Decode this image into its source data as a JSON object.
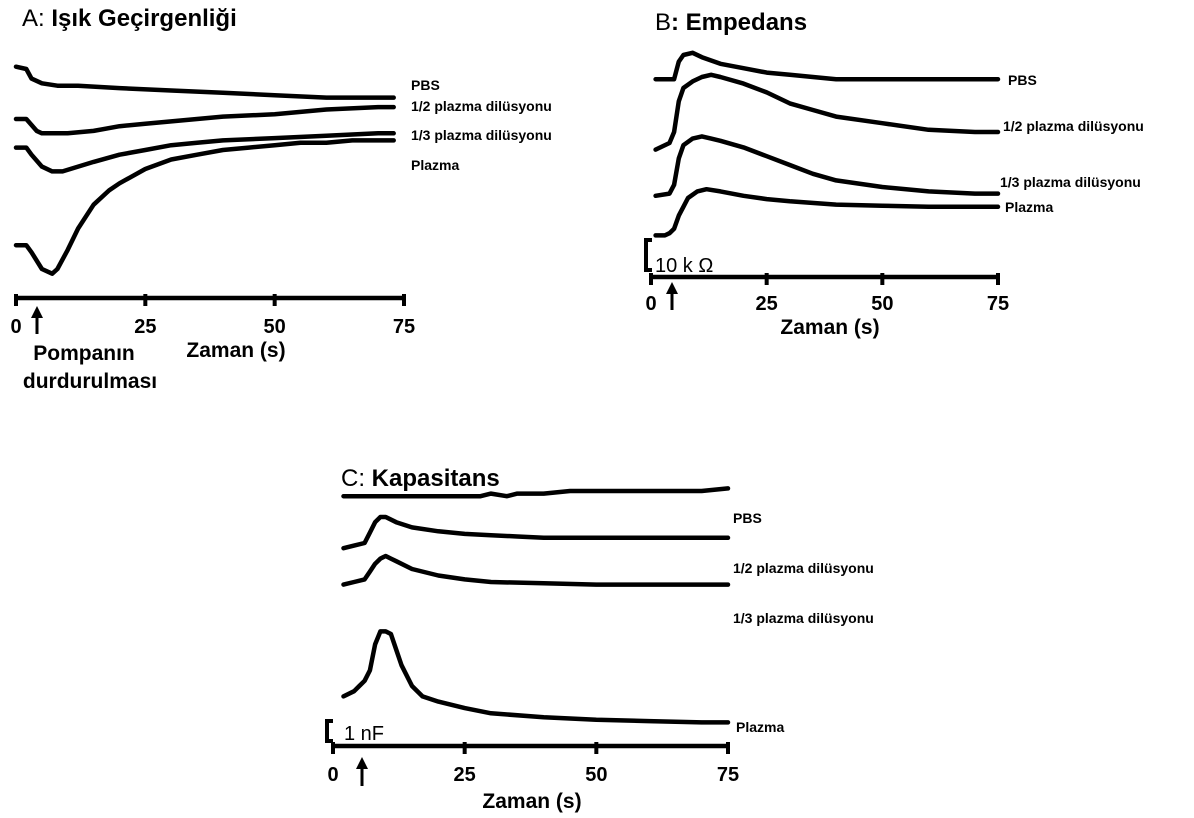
{
  "chart_data": [
    {
      "type": "line",
      "panel": "A",
      "title_prefix": "A:",
      "title": "Işık Geçirgenliği",
      "xlabel": "Zaman (s)",
      "xlim": [
        0,
        75
      ],
      "x_ticks": [
        "0",
        "25",
        "50",
        "75"
      ],
      "annotation": [
        "Pompanın",
        "durdurulması"
      ],
      "arrow_x": 4,
      "series": [
        {
          "name": "PBS",
          "x": [
            0,
            2,
            3,
            5,
            8,
            12,
            20,
            30,
            40,
            50,
            60,
            65,
            70,
            73
          ],
          "y": [
            9.3,
            9.2,
            8.8,
            8.6,
            8.5,
            8.5,
            8.4,
            8.3,
            8.2,
            8.1,
            8.0,
            8.0,
            8.0,
            8.0
          ]
        },
        {
          "name": "1/2 plazma dilüsyonu",
          "x": [
            0,
            2,
            4,
            5,
            7,
            10,
            15,
            20,
            25,
            30,
            40,
            50,
            60,
            70,
            73
          ],
          "y": [
            7.1,
            7.1,
            6.6,
            6.5,
            6.5,
            6.5,
            6.6,
            6.8,
            6.9,
            7.0,
            7.2,
            7.3,
            7.5,
            7.6,
            7.6
          ]
        },
        {
          "name": "1/3 plazma dilüsyonu",
          "x": [
            0,
            2,
            3,
            5,
            7,
            9,
            12,
            15,
            20,
            25,
            30,
            35,
            40,
            50,
            60,
            70,
            73
          ],
          "y": [
            5.9,
            5.9,
            5.6,
            5.1,
            4.9,
            4.9,
            5.1,
            5.3,
            5.6,
            5.8,
            6.0,
            6.1,
            6.2,
            6.3,
            6.4,
            6.5,
            6.5
          ]
        },
        {
          "name": "Plazma",
          "x": [
            0,
            2,
            3,
            5,
            7,
            8,
            10,
            12,
            15,
            18,
            20,
            25,
            30,
            35,
            40,
            45,
            50,
            55,
            60,
            65,
            70,
            73
          ],
          "y": [
            1.8,
            1.8,
            1.5,
            0.8,
            0.6,
            0.8,
            1.6,
            2.5,
            3.5,
            4.1,
            4.4,
            5.0,
            5.4,
            5.6,
            5.8,
            5.9,
            6.0,
            6.1,
            6.1,
            6.2,
            6.2,
            6.2
          ]
        }
      ]
    },
    {
      "type": "line",
      "panel": "B",
      "title_prefix": "B",
      "title": ": Empedans",
      "xlabel": "Zaman (s)",
      "xlim": [
        0,
        75
      ],
      "x_ticks": [
        "0",
        "25",
        "50",
        "75"
      ],
      "scale_bar": "10  k Ω",
      "arrow_x": 5,
      "series": [
        {
          "name": "PBS",
          "x": [
            1,
            5,
            6,
            7,
            9,
            11,
            15,
            20,
            25,
            30,
            35,
            40,
            50,
            60,
            70,
            75
          ],
          "y": [
            8.4,
            8.4,
            9.2,
            9.5,
            9.6,
            9.4,
            9.1,
            8.9,
            8.7,
            8.6,
            8.5,
            8.4,
            8.4,
            8.4,
            8.4,
            8.4
          ]
        },
        {
          "name": "1/2 plazma dilüsyonu",
          "x": [
            1,
            4,
            5,
            6,
            7,
            9,
            11,
            13,
            15,
            20,
            25,
            30,
            35,
            40,
            50,
            60,
            70,
            75
          ],
          "y": [
            5.2,
            5.5,
            6.0,
            7.4,
            8.0,
            8.3,
            8.5,
            8.6,
            8.5,
            8.2,
            7.8,
            7.3,
            7.0,
            6.7,
            6.4,
            6.1,
            6.0,
            6.0
          ]
        },
        {
          "name": "1/3 plazma dilüsyonu",
          "x": [
            1,
            4,
            5,
            6,
            7,
            9,
            11,
            13,
            15,
            20,
            25,
            30,
            35,
            40,
            50,
            60,
            70,
            75
          ],
          "y": [
            3.1,
            3.2,
            3.6,
            4.8,
            5.4,
            5.7,
            5.8,
            5.7,
            5.6,
            5.3,
            4.9,
            4.5,
            4.1,
            3.8,
            3.5,
            3.3,
            3.2,
            3.2
          ]
        },
        {
          "name": "Plazma",
          "x": [
            1,
            3,
            4,
            5,
            6,
            7,
            8,
            10,
            12,
            15,
            20,
            25,
            30,
            40,
            50,
            60,
            70,
            75
          ],
          "y": [
            1.3,
            1.3,
            1.4,
            1.6,
            2.2,
            2.6,
            3.0,
            3.3,
            3.4,
            3.3,
            3.1,
            2.95,
            2.85,
            2.7,
            2.65,
            2.6,
            2.6,
            2.6
          ]
        }
      ]
    },
    {
      "type": "line",
      "panel": "C",
      "title_prefix": "C:",
      "title": "Kapasitans",
      "xlabel": "Zaman (s)",
      "xlim": [
        0,
        75
      ],
      "x_ticks": [
        "0",
        "25",
        "50",
        "75"
      ],
      "scale_bar": "1 nF",
      "arrow_x": 6,
      "series": [
        {
          "name": "PBS",
          "x": [
            2,
            10,
            20,
            28,
            30,
            33,
            35,
            40,
            45,
            50,
            60,
            70,
            75
          ],
          "y": [
            9.3,
            9.3,
            9.3,
            9.3,
            9.4,
            9.3,
            9.4,
            9.4,
            9.5,
            9.5,
            9.5,
            9.5,
            9.6
          ]
        },
        {
          "name": "1/2 plazma dilüsyonu",
          "x": [
            2,
            4,
            6,
            7,
            8,
            9,
            10,
            12,
            15,
            20,
            25,
            30,
            35,
            40,
            50,
            60,
            70,
            75
          ],
          "y": [
            7.3,
            7.4,
            7.5,
            7.9,
            8.3,
            8.5,
            8.5,
            8.3,
            8.1,
            7.95,
            7.85,
            7.8,
            7.75,
            7.7,
            7.7,
            7.7,
            7.7,
            7.7
          ]
        },
        {
          "name": "1/3 plazma dilüsyonu",
          "x": [
            2,
            4,
            6,
            7,
            8,
            9,
            10,
            11,
            12,
            15,
            20,
            25,
            30,
            40,
            50,
            60,
            70,
            75
          ],
          "y": [
            5.9,
            6.0,
            6.1,
            6.4,
            6.7,
            6.9,
            7.0,
            6.9,
            6.8,
            6.5,
            6.25,
            6.1,
            6.0,
            5.95,
            5.9,
            5.9,
            5.9,
            5.9
          ]
        },
        {
          "name": "Plazma",
          "x": [
            2,
            4,
            5,
            6,
            7,
            8,
            9,
            10,
            11,
            12,
            13,
            15,
            17,
            20,
            25,
            30,
            40,
            50,
            60,
            70,
            75
          ],
          "y": [
            1.6,
            1.8,
            2.0,
            2.2,
            2.6,
            3.6,
            4.1,
            4.1,
            4.0,
            3.4,
            2.8,
            2.0,
            1.6,
            1.4,
            1.15,
            0.95,
            0.8,
            0.7,
            0.65,
            0.6,
            0.6
          ]
        }
      ]
    }
  ]
}
